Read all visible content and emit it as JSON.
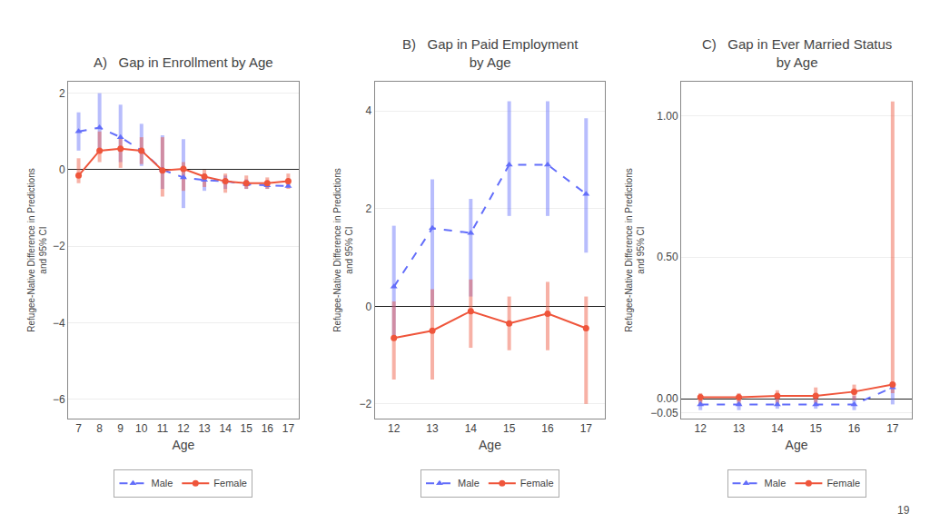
{
  "chart_data": [
    {
      "type": "line",
      "title": "A)   Gap in Enrollment by Age",
      "xlabel": "Age",
      "ylabel": "Refugee-Native Difference in Predictions\nand 95% CI",
      "x": [
        7,
        8,
        9,
        10,
        11,
        12,
        13,
        14,
        15,
        16,
        17
      ],
      "series": [
        {
          "name": "Male",
          "color": "#636efa",
          "marker": "triangle",
          "line_style": "dashed",
          "values": [
            1.0,
            1.1,
            0.85,
            0.5,
            0.0,
            -0.2,
            -0.27,
            -0.3,
            -0.38,
            -0.41,
            -0.43
          ],
          "ci_low": [
            0.5,
            0.5,
            0.2,
            0.1,
            -0.5,
            -1.0,
            -0.55,
            -0.5,
            -0.5,
            -0.5,
            -0.45
          ],
          "ci_high": [
            1.5,
            2.0,
            1.7,
            1.2,
            0.9,
            0.8,
            -0.1,
            -0.15,
            -0.25,
            -0.3,
            -0.35
          ]
        },
        {
          "name": "Female",
          "color": "#ef553b",
          "marker": "circle",
          "line_style": "solid",
          "values": [
            -0.15,
            0.5,
            0.55,
            0.5,
            -0.02,
            0.02,
            -0.18,
            -0.3,
            -0.35,
            -0.35,
            -0.3
          ],
          "ci_low": [
            -0.35,
            0.2,
            0.05,
            0.15,
            -0.7,
            -0.55,
            -0.45,
            -0.6,
            -0.5,
            -0.5,
            -0.5
          ],
          "ci_high": [
            0.3,
            1.0,
            0.85,
            0.85,
            0.85,
            0.2,
            0.0,
            -0.1,
            -0.15,
            -0.2,
            -0.1
          ]
        }
      ],
      "xlim": [
        6.5,
        17.5
      ],
      "xticks": [
        7,
        8,
        9,
        10,
        11,
        12,
        13,
        14,
        15,
        16,
        17
      ],
      "ylim": [
        -6.5,
        2.3
      ],
      "yticks": [
        2,
        0,
        -2,
        -4,
        -6
      ],
      "grid": true,
      "legend": "bottom"
    },
    {
      "type": "line",
      "title": "B)   Gap in Paid Employment\nby Age",
      "xlabel": "Age",
      "ylabel": "Refugee-Native Difference in Predictions\nand 95% CI",
      "x": [
        12,
        13,
        14,
        15,
        16,
        17
      ],
      "series": [
        {
          "name": "Male",
          "color": "#636efa",
          "marker": "triangle",
          "line_style": "dashed",
          "values": [
            0.4,
            1.6,
            1.5,
            2.9,
            2.9,
            2.3
          ],
          "ci_low": [
            -0.65,
            0.0,
            0.2,
            1.85,
            1.85,
            1.1
          ],
          "ci_high": [
            1.65,
            2.6,
            2.2,
            4.2,
            4.2,
            3.85
          ]
        },
        {
          "name": "Female",
          "color": "#ef553b",
          "marker": "circle",
          "line_style": "solid",
          "values": [
            -0.65,
            -0.5,
            -0.1,
            -0.35,
            -0.15,
            -0.45
          ],
          "ci_low": [
            -1.5,
            -1.5,
            -0.85,
            -0.9,
            -0.9,
            -2.0
          ],
          "ci_high": [
            0.1,
            0.35,
            0.55,
            0.2,
            0.5,
            0.2
          ]
        }
      ],
      "xlim": [
        11.5,
        17.5
      ],
      "xticks": [
        12,
        13,
        14,
        15,
        16,
        17
      ],
      "ylim": [
        -2.3,
        4.6
      ],
      "yticks": [
        4,
        2,
        0,
        -2
      ],
      "grid": true,
      "legend": "bottom"
    },
    {
      "type": "line",
      "title": "C)   Gap in Ever Married Status\nby Age",
      "xlabel": "Age",
      "ylabel": "Refugee-Native Difference in Predictions\nand 95% CI",
      "x": [
        12,
        13,
        14,
        15,
        16,
        17
      ],
      "series": [
        {
          "name": "Male",
          "color": "#636efa",
          "marker": "triangle",
          "line_style": "dashed",
          "values": [
            -0.02,
            -0.02,
            -0.02,
            -0.02,
            -0.02,
            0.04
          ],
          "ci_low": [
            -0.04,
            -0.04,
            -0.035,
            -0.035,
            -0.04,
            -0.02
          ],
          "ci_high": [
            0.015,
            0.015,
            0.01,
            0.01,
            0.01,
            0.04
          ]
        },
        {
          "name": "Female",
          "color": "#ef553b",
          "marker": "circle",
          "line_style": "solid",
          "values": [
            0.005,
            0.005,
            0.01,
            0.01,
            0.025,
            0.05
          ],
          "ci_low": [
            -0.02,
            -0.02,
            -0.02,
            -0.015,
            -0.005,
            0.02
          ],
          "ci_high": [
            0.02,
            0.02,
            0.03,
            0.04,
            0.05,
            1.05
          ]
        }
      ],
      "xlim": [
        11.5,
        17.5
      ],
      "xticks": [
        12,
        13,
        14,
        15,
        16,
        17
      ],
      "ylim": [
        -0.07,
        1.12
      ],
      "yticks": [
        {
          "value": 1.0,
          "label": "1.00"
        },
        {
          "value": 0.5,
          "label": "0.50"
        },
        {
          "value": 0,
          "label": "0.00"
        },
        {
          "value": -0.05,
          "label": "−0.05"
        }
      ],
      "grid": true,
      "legend": "bottom",
      "annotations": [
        {
          "text": "19"
        }
      ]
    }
  ]
}
